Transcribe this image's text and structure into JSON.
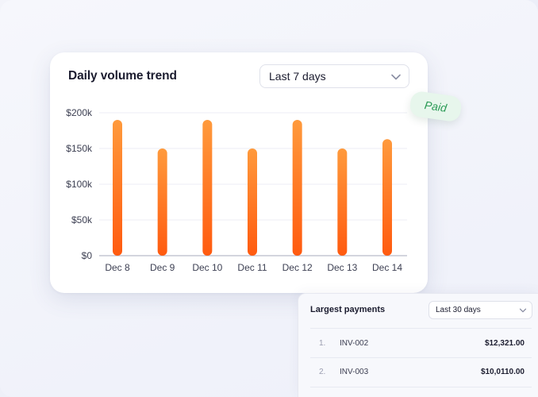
{
  "chart_card": {
    "title": "Daily volume trend",
    "range_select": "Last 7 days"
  },
  "tag": {
    "label": "Paid"
  },
  "payments": {
    "title": "Largest payments",
    "range_select": "Last 30 days",
    "rows": [
      {
        "index": "1.",
        "invoice": "INV-002",
        "amount": "$12,321.00"
      },
      {
        "index": "2.",
        "invoice": "INV-003",
        "amount": "$10,0110.00"
      }
    ]
  },
  "chart_data": {
    "type": "bar",
    "title": "Daily volume trend",
    "categories": [
      "Dec 8",
      "Dec 9",
      "Dec 10",
      "Dec 11",
      "Dec 12",
      "Dec 13",
      "Dec 14"
    ],
    "values": [
      190000,
      150000,
      190000,
      150000,
      190000,
      150000,
      163000
    ],
    "y_ticks": [
      "$0",
      "$50k",
      "$100k",
      "$150k",
      "$200k"
    ],
    "y_tick_values": [
      0,
      50000,
      100000,
      150000,
      200000
    ],
    "ylim": [
      0,
      200000
    ],
    "grid": true,
    "bar_gradient": [
      "#ff9a3c",
      "#ff5a0f"
    ]
  },
  "icons": {
    "dropdown": "chevron-down-icon"
  }
}
